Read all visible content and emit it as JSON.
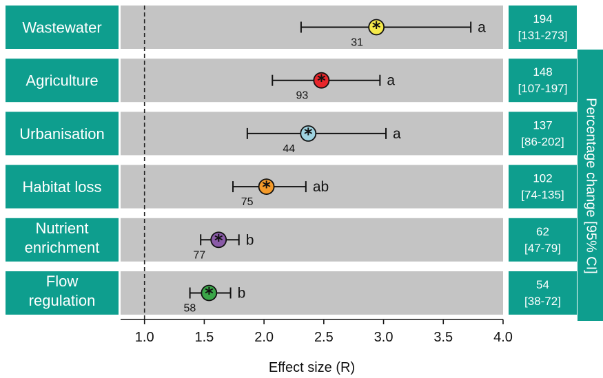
{
  "chart_data": {
    "type": "scatter",
    "xlabel": "Effect size (R)",
    "xlim": [
      0.8,
      4.0
    ],
    "xticks": [
      "1.0",
      "1.5",
      "2.0",
      "2.5",
      "3.0",
      "3.5",
      "4.0"
    ],
    "reference_line": 1.0,
    "right_axis_label": "Percentage change [95% CI]",
    "rows": [
      {
        "category_lines": [
          "Wastewater"
        ],
        "estimate": 2.94,
        "ci_low": 2.31,
        "ci_high": 3.73,
        "n": "31",
        "group": "a",
        "color": "#f5e94a",
        "pct": "194",
        "pct_ci": "[131-273]"
      },
      {
        "category_lines": [
          "Agriculture"
        ],
        "estimate": 2.48,
        "ci_low": 2.07,
        "ci_high": 2.97,
        "n": "93",
        "group": "a",
        "color": "#e8262b",
        "pct": "148",
        "pct_ci": "[107-197]"
      },
      {
        "category_lines": [
          "Urbanisation"
        ],
        "estimate": 2.37,
        "ci_low": 1.86,
        "ci_high": 3.02,
        "n": "44",
        "group": "a",
        "color": "#9fd3e0",
        "pct": "137",
        "pct_ci": "[86-202]"
      },
      {
        "category_lines": [
          "Habitat loss"
        ],
        "estimate": 2.02,
        "ci_low": 1.74,
        "ci_high": 2.35,
        "n": "75",
        "group": "ab",
        "color": "#f49a2a",
        "pct": "102",
        "pct_ci": "[74-135]"
      },
      {
        "category_lines": [
          "Nutrient",
          "enrichment"
        ],
        "estimate": 1.62,
        "ci_low": 1.47,
        "ci_high": 1.79,
        "n": "77",
        "group": "b",
        "color": "#8a5ba8",
        "pct": "62",
        "pct_ci": "[47-79]"
      },
      {
        "category_lines": [
          "Flow",
          "regulation"
        ],
        "estimate": 1.54,
        "ci_low": 1.38,
        "ci_high": 1.72,
        "n": "58",
        "group": "b",
        "color": "#3aa648",
        "pct": "54",
        "pct_ci": "[38-72]"
      }
    ]
  },
  "colors": {
    "teal": "#0e9e8e",
    "panel_grey": "#c4c4c4"
  }
}
